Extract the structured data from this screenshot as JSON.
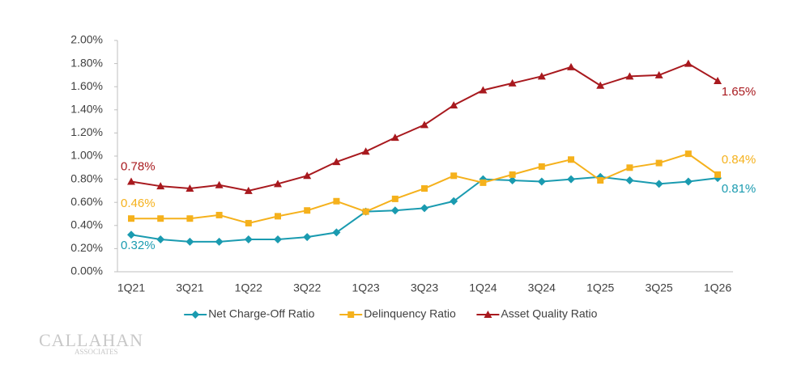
{
  "chart_data": {
    "type": "line",
    "categories": [
      "1Q21",
      null,
      "3Q21",
      null,
      "1Q22",
      null,
      "3Q22",
      null,
      "1Q23",
      null,
      "3Q23",
      null,
      "1Q24",
      null,
      "3Q24",
      null,
      "1Q25",
      null,
      "3Q25",
      null,
      "1Q26"
    ],
    "ylim": [
      0,
      2
    ],
    "yticks": [
      {
        "value": 0,
        "label": "0.00%"
      },
      {
        "value": 0.2,
        "label": "0.20%"
      },
      {
        "value": 0.4,
        "label": "0.40%"
      },
      {
        "value": 0.6,
        "label": "0.60%"
      },
      {
        "value": 0.8,
        "label": "0.80%"
      },
      {
        "value": 1.0,
        "label": "1.00%"
      },
      {
        "value": 1.2,
        "label": "1.20%"
      },
      {
        "value": 1.4,
        "label": "1.40%"
      },
      {
        "value": 1.6,
        "label": "1.60%"
      },
      {
        "value": 1.8,
        "label": "1.80%"
      },
      {
        "value": 2.0,
        "label": "2.00%"
      }
    ],
    "grid": false,
    "legend": "bottom",
    "series": [
      {
        "name": "Net Charge-Off Ratio",
        "color": "#1a9bb0",
        "marker": "diamond",
        "values": [
          0.32,
          0.28,
          0.26,
          0.26,
          0.28,
          0.28,
          0.3,
          0.34,
          0.52,
          0.53,
          0.55,
          0.61,
          0.8,
          0.79,
          0.78,
          0.8,
          0.82,
          0.79,
          0.76,
          0.78,
          0.81
        ],
        "value_labels": [
          "0.32%",
          null,
          null,
          null,
          null,
          null,
          null,
          null,
          null,
          null,
          null,
          null,
          null,
          null,
          null,
          null,
          null,
          null,
          null,
          null,
          "0.81%"
        ]
      },
      {
        "name": "Delinquency Ratio",
        "color": "#f5b11c",
        "marker": "square",
        "values": [
          0.46,
          0.46,
          0.46,
          0.49,
          0.42,
          0.48,
          0.53,
          0.61,
          0.52,
          0.63,
          0.72,
          0.83,
          0.77,
          0.84,
          0.91,
          0.97,
          0.79,
          0.9,
          0.94,
          1.02,
          0.84
        ],
        "value_labels": [
          "0.46%",
          null,
          null,
          null,
          null,
          null,
          null,
          null,
          null,
          null,
          null,
          null,
          null,
          null,
          null,
          null,
          null,
          null,
          null,
          null,
          "0.84%"
        ]
      },
      {
        "name": "Asset Quality Ratio",
        "color": "#a8191e",
        "marker": "triangle",
        "values": [
          0.78,
          0.74,
          0.72,
          0.75,
          0.7,
          0.76,
          0.83,
          0.95,
          1.04,
          1.16,
          1.27,
          1.44,
          1.57,
          1.63,
          1.69,
          1.77,
          1.61,
          1.69,
          1.7,
          1.8,
          1.65
        ],
        "value_labels": [
          "0.78%",
          null,
          null,
          null,
          null,
          null,
          null,
          null,
          null,
          null,
          null,
          null,
          null,
          null,
          null,
          null,
          null,
          null,
          null,
          null,
          "1.65%"
        ]
      }
    ]
  },
  "branding": {
    "name": "CALLAHAN",
    "sub": "ASSOCIATES"
  }
}
